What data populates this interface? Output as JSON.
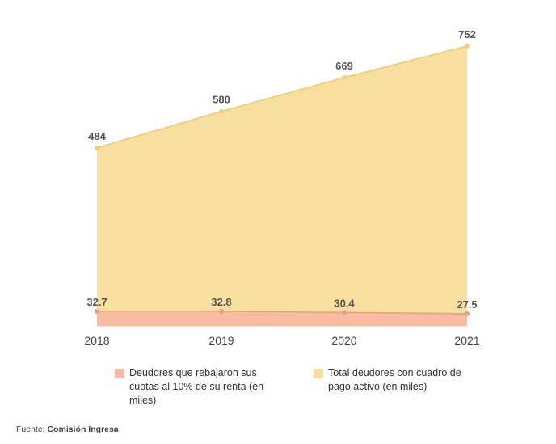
{
  "chart_data": {
    "type": "area",
    "categories": [
      "2018",
      "2019",
      "2020",
      "2021"
    ],
    "series": [
      {
        "name": "Deudores que rebajaron sus cuotas al 10% de su renta (en miles)",
        "values": [
          32.7,
          32.8,
          30.4,
          27.5
        ],
        "labels": [
          "32.7",
          "32.8",
          "30.4",
          "27.5"
        ],
        "fill_color": "#f8b9a2",
        "line_color": "#f29a85"
      },
      {
        "name": "Total deudores con cuadro de pago activo (en miles)",
        "values": [
          484,
          580,
          669,
          752
        ],
        "labels": [
          "484",
          "580",
          "669",
          "752"
        ],
        "fill_color": "#f7de9a",
        "line_color": "#f5d06d"
      }
    ],
    "legend_position": "bottom",
    "grid": false
  },
  "source": {
    "label": "Fuente:",
    "value": "Comisión Ingresa"
  }
}
